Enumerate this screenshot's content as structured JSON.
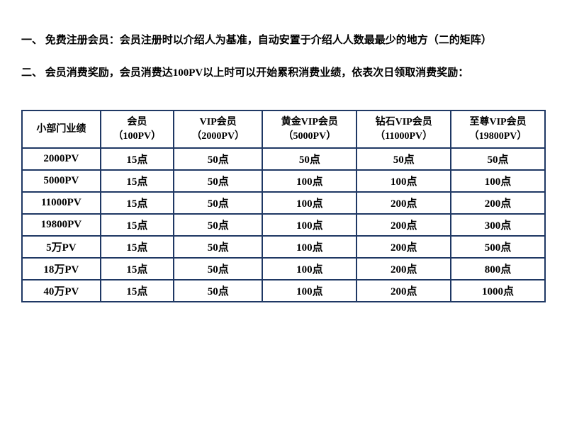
{
  "paragraphs": {
    "p1": "一、 免费注册会员：会员注册时以介绍人为基准，自动安置于介绍人人数最最少的地方（二的矩阵）",
    "p2": "二、 会员消费奖励，会员消费达100PV以上时可以开始累积消费业绩，依表次日领取消费奖励："
  },
  "table": {
    "border_color": "#1f3864",
    "text_color": "#000000",
    "background_color": "#ffffff",
    "header_fontsize": 14,
    "cell_fontsize": 15,
    "columns": [
      {
        "line1": "小部门业绩",
        "line2": ""
      },
      {
        "line1": "会员",
        "line2": "（100PV）"
      },
      {
        "line1": "VIP会员",
        "line2": "（2000PV）"
      },
      {
        "line1": "黄金VIP会员",
        "line2": "（5000PV）"
      },
      {
        "line1": "钻石VIP会员",
        "line2": "（11000PV）"
      },
      {
        "line1": "至尊VIP会员",
        "line2": "（19800PV）"
      }
    ],
    "rows": [
      {
        "label": "2000PV",
        "cells": [
          "15点",
          "50点",
          "50点",
          "50点",
          "50点"
        ]
      },
      {
        "label": "5000PV",
        "cells": [
          "15点",
          "50点",
          "100点",
          "100点",
          "100点"
        ]
      },
      {
        "label": "11000PV",
        "cells": [
          "15点",
          "50点",
          "100点",
          "200点",
          "200点"
        ]
      },
      {
        "label": "19800PV",
        "cells": [
          "15点",
          "50点",
          "100点",
          "200点",
          "300点"
        ]
      },
      {
        "label": "5万PV",
        "cells": [
          "15点",
          "50点",
          "100点",
          "200点",
          "500点"
        ]
      },
      {
        "label": "18万PV",
        "cells": [
          "15点",
          "50点",
          "100点",
          "200点",
          "800点"
        ]
      },
      {
        "label": "40万PV",
        "cells": [
          "15点",
          "50点",
          "100点",
          "200点",
          "1000点"
        ]
      }
    ]
  }
}
